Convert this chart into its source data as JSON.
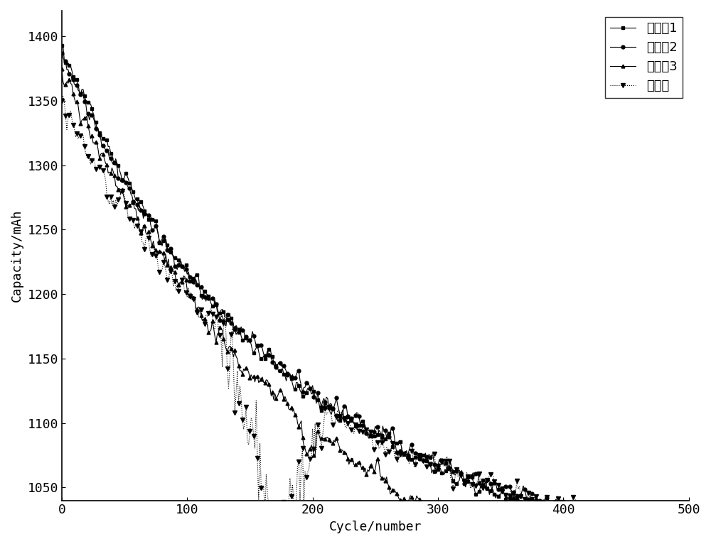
{
  "title": "",
  "xlabel": "Cycle/number",
  "ylabel": "Capacity/mAh",
  "xlim": [
    0,
    500
  ],
  "ylim": [
    1040,
    1420
  ],
  "xticks": [
    0,
    100,
    200,
    300,
    400,
    500
  ],
  "yticks": [
    1050,
    1100,
    1150,
    1200,
    1250,
    1300,
    1350,
    1400
  ],
  "series": [
    {
      "label": "实施夙1",
      "color": "#000000",
      "linestyle": "-",
      "marker": "s",
      "markersize": 3.5,
      "linewidth": 0.8
    },
    {
      "label": "实施夙2",
      "color": "#000000",
      "linestyle": "-",
      "marker": "o",
      "markersize": 3.5,
      "linewidth": 0.8
    },
    {
      "label": "实施夙3",
      "color": "#000000",
      "linestyle": "-",
      "marker": "^",
      "markersize": 3.5,
      "linewidth": 0.8
    },
    {
      "label": "对比例",
      "color": "#000000",
      "linestyle": ":",
      "marker": "v",
      "markersize": 4,
      "linewidth": 0.8
    }
  ],
  "background_color": "#ffffff",
  "font_size": 13,
  "legend_fontsize": 13,
  "marker_every": 3
}
